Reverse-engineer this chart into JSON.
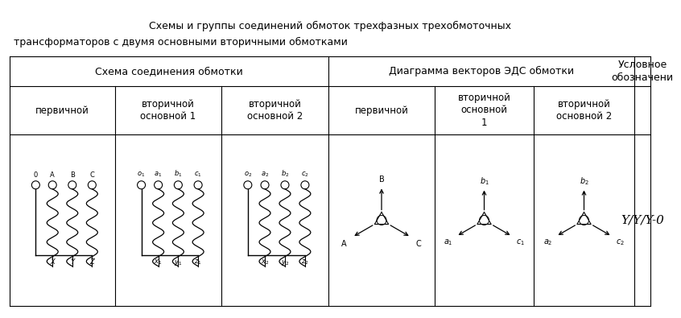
{
  "title_line1": "Схемы и группы соединений обмоток трехфазных трехобмоточных",
  "title_line2": "трансформаторов с двумя основными вторичными обмотками",
  "col_header1": "Схема соединения обмотки",
  "col_header2": "Диаграмма векторов ЭДС обмотки",
  "col_header3_l1": "Условное",
  "col_header3_l2": "обозначени",
  "sub_headers": [
    "первичной",
    "вторичной\nосновной 1",
    "вторичной\nосновной 2",
    "первичной",
    "вторичной\nосновной\n1",
    "вторичной\nосновной 2"
  ],
  "symbol": "Y/Y/Y-0",
  "bg_color": "#ffffff",
  "line_color": "#000000",
  "text_color": "#000000"
}
